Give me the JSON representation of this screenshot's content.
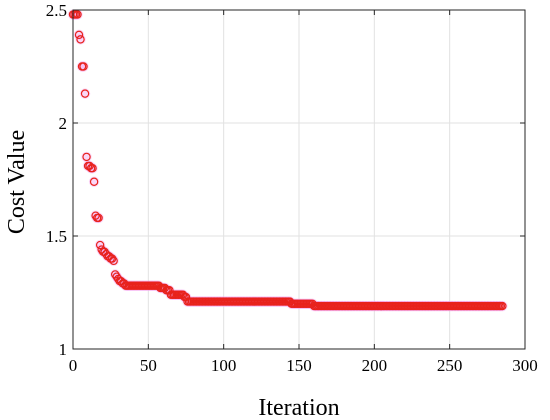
{
  "chart_data": {
    "type": "scatter",
    "xlabel": "Iteration",
    "ylabel": "Cost Value",
    "xlim": [
      0,
      300
    ],
    "ylim": [
      1,
      2.5
    ],
    "xticks": [
      "0",
      "50",
      "100",
      "150",
      "200",
      "250",
      "300"
    ],
    "yticks": [
      "1",
      "1.5",
      "2",
      "2.5"
    ],
    "grid": true,
    "marker_color": "#e8221c",
    "highlight_color": "#f4a6f0",
    "series": [
      {
        "values": [
          [
            0,
            2.48
          ],
          [
            1,
            2.48
          ],
          [
            2,
            2.48
          ],
          [
            3,
            2.48
          ],
          [
            4,
            2.39
          ],
          [
            5,
            2.37
          ],
          [
            6,
            2.25
          ],
          [
            7,
            2.25
          ],
          [
            8,
            2.13
          ],
          [
            9,
            1.85
          ],
          [
            10,
            1.81
          ],
          [
            11,
            1.81
          ],
          [
            12,
            1.8
          ],
          [
            13,
            1.8
          ],
          [
            14,
            1.74
          ],
          [
            15,
            1.59
          ],
          [
            16,
            1.58
          ],
          [
            17,
            1.58
          ],
          [
            18,
            1.46
          ],
          [
            19,
            1.44
          ],
          [
            20,
            1.43
          ],
          [
            21,
            1.43
          ],
          [
            22,
            1.42
          ],
          [
            23,
            1.41
          ],
          [
            24,
            1.41
          ],
          [
            25,
            1.4
          ],
          [
            26,
            1.4
          ],
          [
            27,
            1.39
          ],
          [
            28,
            1.33
          ],
          [
            29,
            1.32
          ],
          [
            30,
            1.31
          ],
          [
            31,
            1.3
          ],
          [
            32,
            1.3
          ],
          [
            33,
            1.29
          ],
          [
            34,
            1.29
          ],
          [
            35,
            1.28
          ],
          [
            36,
            1.28
          ],
          [
            37,
            1.28
          ],
          [
            38,
            1.28
          ],
          [
            39,
            1.28
          ],
          [
            40,
            1.28
          ],
          [
            45,
            1.28
          ],
          [
            50,
            1.28
          ],
          [
            55,
            1.28
          ],
          [
            58,
            1.27
          ],
          [
            60,
            1.27
          ],
          [
            62,
            1.26
          ],
          [
            64,
            1.26
          ],
          [
            65,
            1.24
          ],
          [
            66,
            1.24
          ],
          [
            68,
            1.24
          ],
          [
            70,
            1.24
          ],
          [
            72,
            1.24
          ],
          [
            74,
            1.23
          ],
          [
            75,
            1.23
          ],
          [
            76,
            1.21
          ],
          [
            80,
            1.21
          ],
          [
            90,
            1.21
          ],
          [
            100,
            1.21
          ],
          [
            110,
            1.21
          ],
          [
            120,
            1.21
          ],
          [
            130,
            1.21
          ],
          [
            140,
            1.21
          ],
          [
            145,
            1.2
          ],
          [
            150,
            1.2
          ],
          [
            155,
            1.2
          ],
          [
            158,
            1.2
          ],
          [
            160,
            1.19
          ],
          [
            170,
            1.19
          ],
          [
            180,
            1.19
          ],
          [
            190,
            1.19
          ],
          [
            200,
            1.19
          ],
          [
            210,
            1.19
          ],
          [
            220,
            1.19
          ],
          [
            230,
            1.19
          ],
          [
            240,
            1.19
          ],
          [
            250,
            1.19
          ],
          [
            260,
            1.19
          ],
          [
            270,
            1.19
          ],
          [
            280,
            1.19
          ],
          [
            285,
            1.19
          ]
        ]
      }
    ]
  }
}
